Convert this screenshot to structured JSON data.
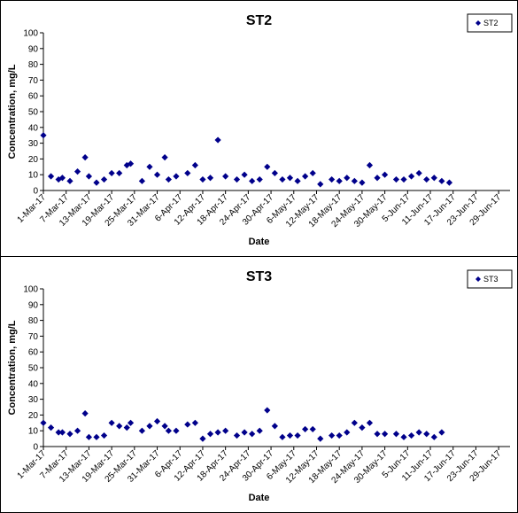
{
  "chart_data": [
    {
      "type": "scatter",
      "title": "ST2",
      "xlabel": "Date",
      "ylabel": "Concentration, mg/L",
      "ylim": [
        0,
        100
      ],
      "yticks": [
        0,
        10,
        20,
        30,
        40,
        50,
        60,
        70,
        80,
        90,
        100
      ],
      "xlim": [
        "1-Mar-17",
        "2-Jul-17"
      ],
      "xtick_labels": [
        "1-Mar-17",
        "7-Mar-17",
        "13-Mar-17",
        "19-Mar-17",
        "25-Mar-17",
        "31-Mar-17",
        "6-Apr-17",
        "12-Apr-17",
        "18-Apr-17",
        "24-Apr-17",
        "30-Apr-17",
        "6-May-17",
        "12-May-17",
        "18-May-17",
        "24-May-17",
        "30-May-17",
        "5-Jun-17",
        "11-Jun-17",
        "17-Jun-17",
        "23-Jun-17",
        "29-Jun-17"
      ],
      "grid": false,
      "legend_position": "top-right",
      "marker_color": "#00008B",
      "series": [
        {
          "name": "ST2",
          "points": [
            {
              "x": "1-Mar-17",
              "y": 35
            },
            {
              "x": "3-Mar-17",
              "y": 9
            },
            {
              "x": "5-Mar-17",
              "y": 7
            },
            {
              "x": "6-Mar-17",
              "y": 8
            },
            {
              "x": "8-Mar-17",
              "y": 6
            },
            {
              "x": "10-Mar-17",
              "y": 12
            },
            {
              "x": "12-Mar-17",
              "y": 21
            },
            {
              "x": "13-Mar-17",
              "y": 9
            },
            {
              "x": "15-Mar-17",
              "y": 5
            },
            {
              "x": "17-Mar-17",
              "y": 7
            },
            {
              "x": "19-Mar-17",
              "y": 11
            },
            {
              "x": "21-Mar-17",
              "y": 11
            },
            {
              "x": "23-Mar-17",
              "y": 16
            },
            {
              "x": "24-Mar-17",
              "y": 17
            },
            {
              "x": "27-Mar-17",
              "y": 6
            },
            {
              "x": "29-Mar-17",
              "y": 15
            },
            {
              "x": "31-Mar-17",
              "y": 10
            },
            {
              "x": "2-Apr-17",
              "y": 21
            },
            {
              "x": "3-Apr-17",
              "y": 7
            },
            {
              "x": "5-Apr-17",
              "y": 9
            },
            {
              "x": "8-Apr-17",
              "y": 11
            },
            {
              "x": "10-Apr-17",
              "y": 16
            },
            {
              "x": "12-Apr-17",
              "y": 7
            },
            {
              "x": "14-Apr-17",
              "y": 8
            },
            {
              "x": "16-Apr-17",
              "y": 32
            },
            {
              "x": "18-Apr-17",
              "y": 9
            },
            {
              "x": "21-Apr-17",
              "y": 7
            },
            {
              "x": "23-Apr-17",
              "y": 10
            },
            {
              "x": "25-Apr-17",
              "y": 6
            },
            {
              "x": "27-Apr-17",
              "y": 7
            },
            {
              "x": "29-Apr-17",
              "y": 15
            },
            {
              "x": "1-May-17",
              "y": 11
            },
            {
              "x": "3-May-17",
              "y": 7
            },
            {
              "x": "5-May-17",
              "y": 8
            },
            {
              "x": "7-May-17",
              "y": 6
            },
            {
              "x": "9-May-17",
              "y": 9
            },
            {
              "x": "11-May-17",
              "y": 11
            },
            {
              "x": "13-May-17",
              "y": 4
            },
            {
              "x": "16-May-17",
              "y": 7
            },
            {
              "x": "18-May-17",
              "y": 6
            },
            {
              "x": "20-May-17",
              "y": 8
            },
            {
              "x": "22-May-17",
              "y": 6
            },
            {
              "x": "24-May-17",
              "y": 5
            },
            {
              "x": "26-May-17",
              "y": 16
            },
            {
              "x": "28-May-17",
              "y": 8
            },
            {
              "x": "30-May-17",
              "y": 10
            },
            {
              "x": "2-Jun-17",
              "y": 7
            },
            {
              "x": "4-Jun-17",
              "y": 7
            },
            {
              "x": "6-Jun-17",
              "y": 9
            },
            {
              "x": "8-Jun-17",
              "y": 11
            },
            {
              "x": "10-Jun-17",
              "y": 7
            },
            {
              "x": "12-Jun-17",
              "y": 8
            },
            {
              "x": "14-Jun-17",
              "y": 6
            },
            {
              "x": "16-Jun-17",
              "y": 5
            }
          ]
        }
      ]
    },
    {
      "type": "scatter",
      "title": "ST3",
      "xlabel": "Date",
      "ylabel": "Concentration, mg/L",
      "ylim": [
        0,
        100
      ],
      "yticks": [
        0,
        10,
        20,
        30,
        40,
        50,
        60,
        70,
        80,
        90,
        100
      ],
      "xlim": [
        "1-Mar-17",
        "2-Jul-17"
      ],
      "xtick_labels": [
        "1-Mar-17",
        "7-Mar-17",
        "13-Mar-17",
        "19-Mar-17",
        "25-Mar-17",
        "31-Mar-17",
        "6-Apr-17",
        "12-Apr-17",
        "18-Apr-17",
        "24-Apr-17",
        "30-Apr-17",
        "6-May-17",
        "12-May-17",
        "18-May-17",
        "24-May-17",
        "30-May-17",
        "5-Jun-17",
        "11-Jun-17",
        "17-Jun-17",
        "23-Jun-17",
        "29-Jun-17"
      ],
      "grid": false,
      "legend_position": "top-right",
      "marker_color": "#00008B",
      "series": [
        {
          "name": "ST3",
          "points": [
            {
              "x": "1-Mar-17",
              "y": 15
            },
            {
              "x": "3-Mar-17",
              "y": 12
            },
            {
              "x": "5-Mar-17",
              "y": 9
            },
            {
              "x": "6-Mar-17",
              "y": 9
            },
            {
              "x": "8-Mar-17",
              "y": 8
            },
            {
              "x": "10-Mar-17",
              "y": 10
            },
            {
              "x": "12-Mar-17",
              "y": 21
            },
            {
              "x": "13-Mar-17",
              "y": 6
            },
            {
              "x": "15-Mar-17",
              "y": 6
            },
            {
              "x": "17-Mar-17",
              "y": 7
            },
            {
              "x": "19-Mar-17",
              "y": 15
            },
            {
              "x": "21-Mar-17",
              "y": 13
            },
            {
              "x": "23-Mar-17",
              "y": 12
            },
            {
              "x": "24-Mar-17",
              "y": 15
            },
            {
              "x": "27-Mar-17",
              "y": 10
            },
            {
              "x": "29-Mar-17",
              "y": 13
            },
            {
              "x": "31-Mar-17",
              "y": 16
            },
            {
              "x": "2-Apr-17",
              "y": 13
            },
            {
              "x": "3-Apr-17",
              "y": 10
            },
            {
              "x": "5-Apr-17",
              "y": 10
            },
            {
              "x": "8-Apr-17",
              "y": 14
            },
            {
              "x": "10-Apr-17",
              "y": 15
            },
            {
              "x": "12-Apr-17",
              "y": 5
            },
            {
              "x": "14-Apr-17",
              "y": 8
            },
            {
              "x": "16-Apr-17",
              "y": 9
            },
            {
              "x": "18-Apr-17",
              "y": 10
            },
            {
              "x": "21-Apr-17",
              "y": 7
            },
            {
              "x": "23-Apr-17",
              "y": 9
            },
            {
              "x": "25-Apr-17",
              "y": 8
            },
            {
              "x": "27-Apr-17",
              "y": 10
            },
            {
              "x": "29-Apr-17",
              "y": 23
            },
            {
              "x": "1-May-17",
              "y": 13
            },
            {
              "x": "3-May-17",
              "y": 6
            },
            {
              "x": "5-May-17",
              "y": 7
            },
            {
              "x": "7-May-17",
              "y": 7
            },
            {
              "x": "9-May-17",
              "y": 11
            },
            {
              "x": "11-May-17",
              "y": 11
            },
            {
              "x": "13-May-17",
              "y": 5
            },
            {
              "x": "16-May-17",
              "y": 7
            },
            {
              "x": "18-May-17",
              "y": 7
            },
            {
              "x": "20-May-17",
              "y": 9
            },
            {
              "x": "22-May-17",
              "y": 15
            },
            {
              "x": "24-May-17",
              "y": 12
            },
            {
              "x": "26-May-17",
              "y": 15
            },
            {
              "x": "28-May-17",
              "y": 8
            },
            {
              "x": "30-May-17",
              "y": 8
            },
            {
              "x": "2-Jun-17",
              "y": 8
            },
            {
              "x": "4-Jun-17",
              "y": 6
            },
            {
              "x": "6-Jun-17",
              "y": 7
            },
            {
              "x": "8-Jun-17",
              "y": 9
            },
            {
              "x": "10-Jun-17",
              "y": 8
            },
            {
              "x": "12-Jun-17",
              "y": 6
            },
            {
              "x": "14-Jun-17",
              "y": 9
            }
          ]
        }
      ]
    }
  ]
}
